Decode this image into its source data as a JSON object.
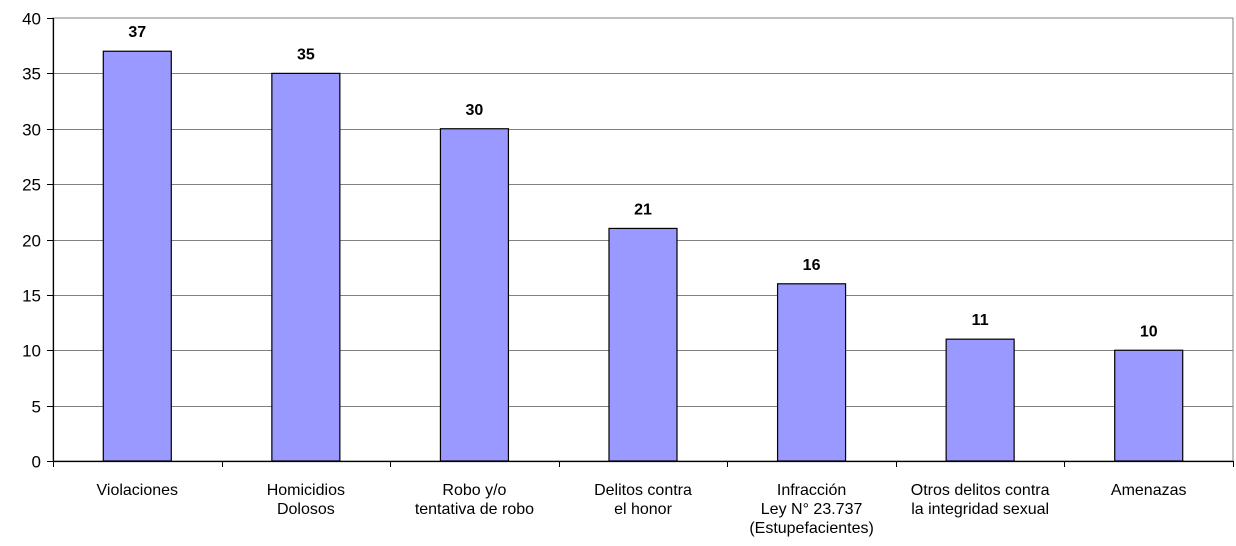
{
  "chart_data": {
    "type": "bar",
    "categories": [
      [
        "Violaciones"
      ],
      [
        "Homicidios",
        "Dolosos"
      ],
      [
        "Robo y/o",
        "tentativa de robo"
      ],
      [
        "Delitos contra",
        "el honor"
      ],
      [
        "Infracción",
        "Ley N° 23.737",
        "(Estupefacientes)"
      ],
      [
        "Otros delitos contra",
        "la integridad sexual"
      ],
      [
        "Amenazas"
      ]
    ],
    "values": [
      37,
      35,
      30,
      21,
      16,
      11,
      10
    ],
    "ylim": [
      0,
      40
    ],
    "yticks": [
      0,
      5,
      10,
      15,
      20,
      25,
      30,
      35,
      40
    ],
    "grid": true,
    "colors": {
      "bar_fill": "#9999ff",
      "bar_stroke": "#000000",
      "grid": "#808080",
      "axis": "#000000"
    }
  }
}
